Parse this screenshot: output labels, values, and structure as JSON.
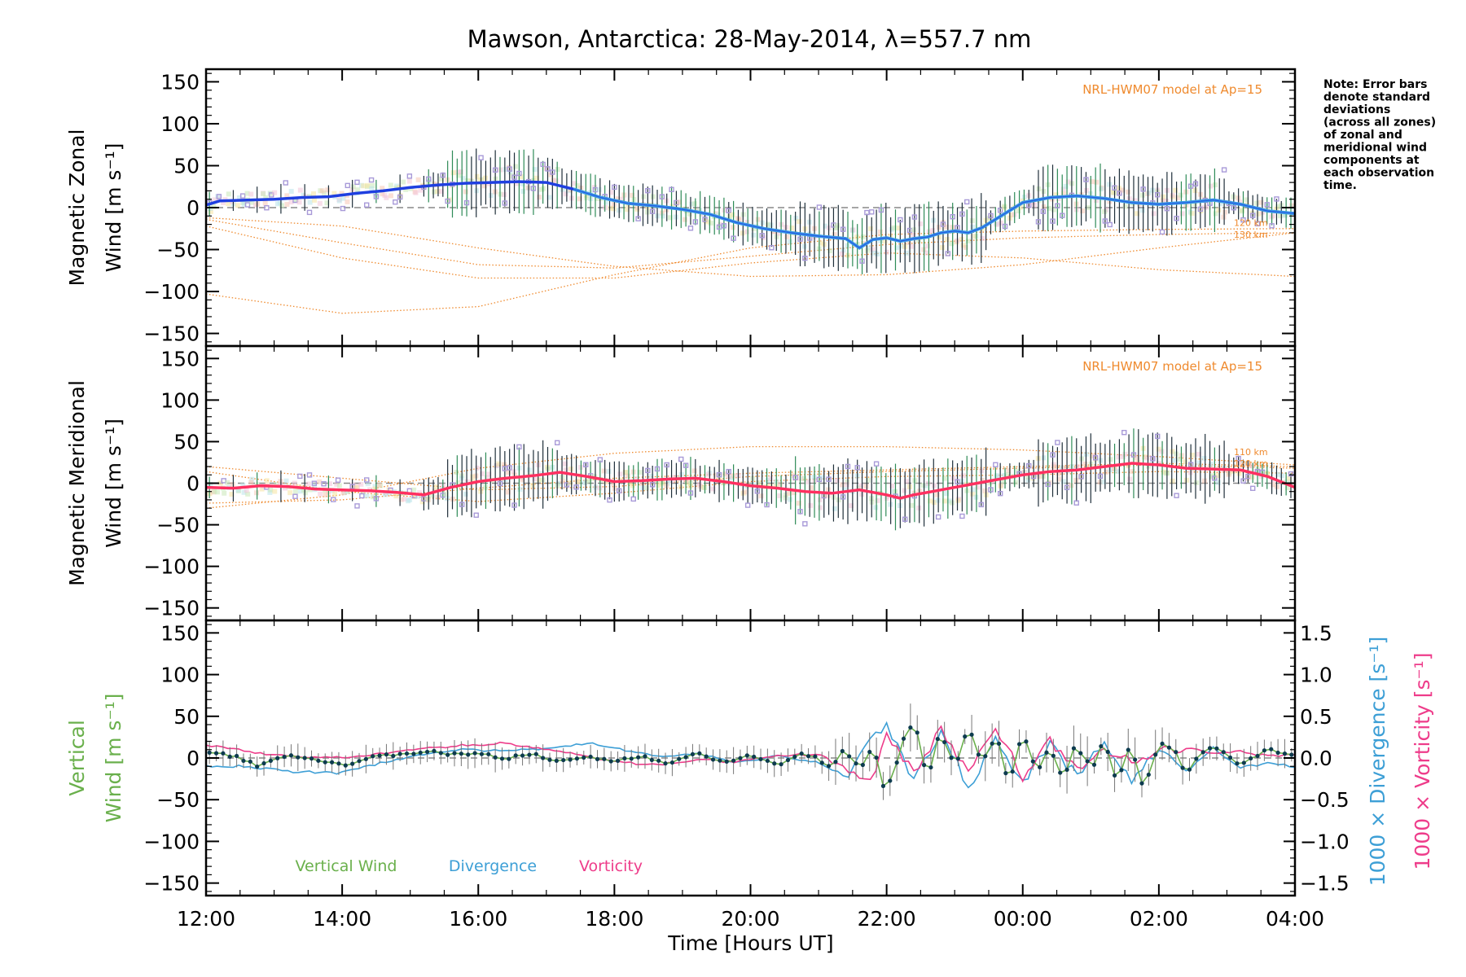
{
  "colors": {
    "zonal_main": "#1f3fe0",
    "zonal_light": "#3a9be6",
    "meridional_main": "#ff3060",
    "model": "#ef8a2e",
    "scatter": "#a89ad8",
    "errorbar_dark": "#1f2f3a",
    "errorbar_green": "#2e8b57",
    "vertical": "#6ab04c",
    "divergence": "#3d9fd6",
    "vorticity": "#ee3c8a",
    "zero_line": "#888888"
  },
  "chart_data": {
    "type": "line",
    "title": "Mawson, Antarctica: 28-May-2014, λ=557.7 nm",
    "xlabel": "Time [Hours UT]",
    "x_range_hours": [
      12,
      28
    ],
    "x_tick_values": [
      12,
      14,
      16,
      18,
      20,
      22,
      24,
      26,
      28
    ],
    "x_ticks": [
      "12:00",
      "14:00",
      "16:00",
      "18:00",
      "20:00",
      "22:00",
      "00:00",
      "02:00",
      "04:00"
    ],
    "note": "Note: Error bars denote standard deviations (across all zones) of zonal and meridional wind components at each observation time.",
    "note_lines": [
      "Note: Error bars",
      "denote standard",
      "deviations",
      "(across all zones)",
      "of zonal and",
      "meridional wind",
      "components at",
      "each observation",
      "time."
    ],
    "panels": [
      {
        "name": "zonal",
        "ylabel_line1": "Magnetic Zonal",
        "ylabel_line2": "Wind [m s⁻¹]",
        "ylim": [
          -165,
          165
        ],
        "y_ticks": [
          150,
          100,
          50,
          0,
          -50,
          -100,
          -150
        ],
        "model_label": "NRL-HWM07 model at Ap=15",
        "model_alt_labels": [
          "120 km",
          "130 km"
        ],
        "series": {
          "x": [
            12.0,
            12.2,
            12.6,
            13.0,
            13.4,
            13.8,
            14.2,
            14.6,
            15.0,
            15.4,
            15.8,
            16.2,
            16.6,
            17.0,
            17.4,
            17.8,
            18.2,
            18.6,
            19.0,
            19.4,
            19.8,
            20.2,
            20.6,
            21.0,
            21.4,
            21.6,
            21.8,
            22.0,
            22.2,
            22.4,
            22.6,
            22.8,
            23.0,
            23.2,
            23.4,
            23.6,
            23.8,
            24.0,
            24.4,
            24.8,
            25.2,
            25.6,
            26.0,
            26.4,
            26.8,
            27.2,
            27.6,
            28.0
          ],
          "y": [
            3,
            8,
            9,
            10,
            12,
            13,
            17,
            20,
            24,
            27,
            29,
            30,
            31,
            30,
            22,
            12,
            5,
            2,
            -2,
            -8,
            -18,
            -25,
            -30,
            -34,
            -37,
            -48,
            -38,
            -36,
            -40,
            -37,
            -35,
            -30,
            -28,
            -30,
            -24,
            -14,
            -4,
            6,
            12,
            14,
            11,
            6,
            4,
            6,
            9,
            4,
            -4,
            -7
          ]
        },
        "model_curves": [
          {
            "x": [
              12,
              14,
              16,
              18,
              20,
              22,
              24,
              26,
              28
            ],
            "y": [
              -103,
              -126,
              -118,
              -80,
              -48,
              -32,
              -28,
              -26,
              -25
            ]
          },
          {
            "x": [
              12,
              14,
              16,
              18,
              20,
              22,
              24,
              26,
              28
            ],
            "y": [
              -12,
              -22,
              -48,
              -70,
              -82,
              -80,
              -68,
              -48,
              -30
            ]
          },
          {
            "x": [
              12,
              14,
              16,
              18,
              20,
              22,
              24,
              26,
              28
            ],
            "y": [
              -14,
              -42,
              -68,
              -72,
              -58,
              -44,
              -36,
              -32,
              -30
            ]
          },
          {
            "x": [
              12,
              14,
              16,
              18,
              20,
              22,
              24,
              26,
              28
            ],
            "y": [
              -22,
              -60,
              -84,
              -84,
              -66,
              -54,
              -60,
              -74,
              -82
            ]
          }
        ]
      },
      {
        "name": "meridional",
        "ylabel_line1": "Magnetic Meridional",
        "ylabel_line2": "Wind [m s⁻¹]",
        "ylim": [
          -165,
          165
        ],
        "y_ticks": [
          150,
          100,
          50,
          0,
          -50,
          -100,
          -150
        ],
        "model_label": "NRL-HWM07 model at Ap=15",
        "model_alt_labels": [
          "110 km",
          "120 km"
        ],
        "series": {
          "x": [
            12.0,
            12.4,
            12.8,
            13.2,
            13.6,
            14.0,
            14.4,
            14.8,
            15.2,
            15.6,
            16.0,
            16.4,
            16.8,
            17.2,
            17.6,
            18.0,
            18.4,
            18.8,
            19.2,
            19.6,
            20.0,
            20.4,
            20.8,
            21.2,
            21.6,
            22.0,
            22.2,
            22.4,
            22.8,
            23.2,
            23.6,
            24.0,
            24.4,
            24.8,
            25.2,
            25.6,
            26.0,
            26.4,
            26.8,
            27.2,
            27.6,
            28.0
          ],
          "y": [
            -5,
            -6,
            -3,
            -4,
            -7,
            -8,
            -9,
            -11,
            -14,
            -5,
            2,
            6,
            9,
            13,
            8,
            2,
            3,
            5,
            6,
            2,
            -3,
            -6,
            -10,
            -12,
            -8,
            -14,
            -18,
            -14,
            -8,
            -2,
            4,
            10,
            14,
            16,
            20,
            24,
            22,
            18,
            17,
            16,
            8,
            -5
          ]
        },
        "model_curves": [
          {
            "x": [
              12,
              14,
              16,
              18,
              20,
              22,
              24,
              26,
              28
            ],
            "y": [
              -30,
              -14,
              18,
              36,
              44,
              44,
              40,
              32,
              22
            ]
          },
          {
            "x": [
              12,
              14,
              16,
              18,
              20,
              22,
              24,
              26,
              28
            ],
            "y": [
              20,
              6,
              -8,
              -4,
              8,
              14,
              18,
              22,
              18
            ]
          },
          {
            "x": [
              12,
              14,
              16,
              18,
              20,
              22,
              24,
              26,
              28
            ],
            "y": [
              14,
              -10,
              -22,
              -12,
              2,
              8,
              10,
              14,
              12
            ]
          },
          {
            "x": [
              12,
              14,
              16,
              18,
              20,
              22,
              24,
              26,
              28
            ],
            "y": [
              -24,
              -20,
              -6,
              6,
              12,
              16,
              20,
              24,
              20
            ]
          }
        ]
      },
      {
        "name": "vertical",
        "ylabel_line1": "Vertical",
        "ylabel_line2": "Wind [m s⁻¹]",
        "ylim": [
          -165,
          165
        ],
        "y_ticks": [
          150,
          100,
          50,
          0,
          -50,
          -100,
          -150
        ],
        "y2_ticks": [
          "1.5",
          "1.0",
          "0.5",
          "0.0",
          "−0.5",
          "−1.0",
          "−1.5"
        ],
        "y2_tick_values": [
          1.5,
          1.0,
          0.5,
          0.0,
          -0.5,
          -1.0,
          -1.5
        ],
        "y2lim": [
          -1.65,
          1.65
        ],
        "y2label_div": "1000 × Divergence [s⁻¹]",
        "y2label_vor": "1000 × Vorticity [s⁻¹]",
        "legend": [
          "Vertical Wind",
          "Divergence",
          "Vorticity"
        ],
        "vertical_wind": {
          "x": [
            12.0,
            12.4,
            12.8,
            13.2,
            13.6,
            14.0,
            14.4,
            14.8,
            15.2,
            15.6,
            16.0,
            16.4,
            16.8,
            17.2,
            17.6,
            18.0,
            18.4,
            18.8,
            19.2,
            19.6,
            20.0,
            20.4,
            20.8,
            21.2,
            21.4,
            21.6,
            21.8,
            22.0,
            22.2,
            22.4,
            22.6,
            22.8,
            23.0,
            23.2,
            23.4,
            23.6,
            23.8,
            24.0,
            24.2,
            24.4,
            24.6,
            24.8,
            25.0,
            25.2,
            25.4,
            25.6,
            25.8,
            26.0,
            26.4,
            26.8,
            27.2,
            27.6,
            28.0
          ],
          "y": [
            5,
            3,
            -10,
            5,
            -3,
            -8,
            0,
            5,
            8,
            4,
            6,
            0,
            4,
            -5,
            2,
            -4,
            3,
            -6,
            5,
            -4,
            2,
            -8,
            6,
            -10,
            8,
            -20,
            10,
            -45,
            15,
            48,
            -20,
            30,
            -15,
            40,
            -10,
            35,
            -40,
            30,
            -20,
            10,
            -25,
            20,
            -15,
            25,
            -30,
            15,
            -40,
            20,
            -10,
            15,
            -8,
            10,
            5
          ]
        },
        "divergence": {
          "x": [
            12.0,
            12.6,
            13.2,
            14.0,
            14.6,
            15.2,
            15.8,
            16.4,
            17.0,
            17.6,
            18.0,
            18.6,
            19.2,
            19.8,
            20.4,
            21.0,
            21.4,
            21.8,
            22.0,
            22.4,
            22.8,
            23.2,
            23.6,
            24.0,
            24.4,
            24.8,
            25.2,
            25.6,
            26.0,
            26.4,
            26.8,
            27.2,
            27.6,
            28.0
          ],
          "y": [
            -0.1,
            -0.1,
            -0.16,
            -0.18,
            -0.05,
            0.05,
            0.1,
            0.08,
            0.12,
            0.18,
            0.12,
            0.02,
            0.05,
            -0.05,
            0.02,
            -0.05,
            -0.25,
            0.25,
            0.42,
            -0.3,
            0.35,
            -0.35,
            0.2,
            -0.28,
            0.15,
            -0.22,
            0.18,
            -0.25,
            0.1,
            -0.15,
            0.12,
            -0.12,
            -0.06,
            -0.1
          ]
        },
        "vorticity": {
          "x": [
            12.0,
            12.6,
            13.2,
            14.0,
            14.6,
            15.2,
            15.8,
            16.4,
            17.0,
            17.6,
            18.0,
            18.6,
            19.2,
            19.8,
            20.4,
            21.0,
            21.4,
            21.8,
            22.0,
            22.4,
            22.8,
            23.2,
            23.6,
            24.0,
            24.4,
            24.8,
            25.2,
            25.6,
            26.0,
            26.4,
            26.8,
            27.2,
            27.6,
            28.0
          ],
          "y": [
            0.15,
            0.08,
            0.02,
            0.0,
            0.05,
            0.12,
            0.15,
            0.18,
            0.1,
            0.02,
            -0.05,
            -0.08,
            -0.02,
            -0.05,
            0.02,
            0.05,
            -0.15,
            -0.25,
            0.3,
            -0.2,
            0.35,
            -0.18,
            0.38,
            -0.22,
            0.2,
            -0.15,
            0.1,
            -0.05,
            0.08,
            0.12,
            0.05,
            0.08,
            0.02,
            0.05
          ]
        }
      }
    ]
  }
}
